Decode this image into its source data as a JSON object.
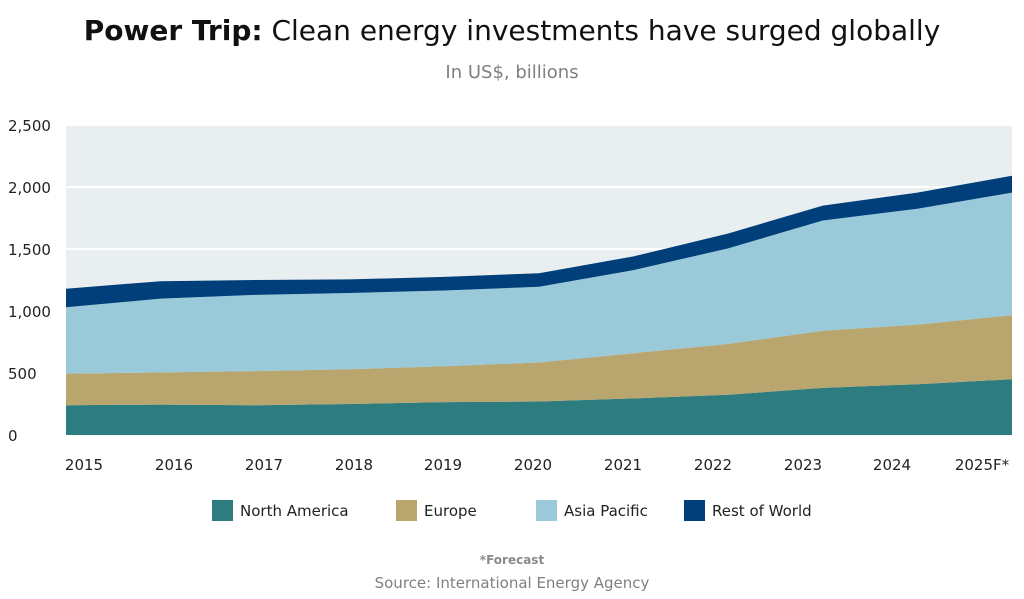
{
  "title": {
    "bold": "Power Trip:",
    "rest": "Clean energy investments have surged globally"
  },
  "subtitle": "In US$, billions",
  "footnote": "*Forecast",
  "source": "Source: International Energy Agency",
  "colors": {
    "plot_background": "#e9eef1",
    "grid": "#ffffff",
    "North America": "#2d7d80",
    "Europe": "#b8a66e",
    "Asia Pacific": "#9acada",
    "Rest of World": "#003f7a"
  },
  "chart_data": {
    "type": "area",
    "stacked": true,
    "title": "Clean energy investments have surged globally",
    "ylabel": "In US$, billions",
    "ylim": [
      0,
      2500
    ],
    "yticks": [
      0,
      500,
      1000,
      1500,
      2000,
      2500
    ],
    "ytick_labels": [
      "0",
      "500",
      "1,000",
      "1,500",
      "2,000",
      "2,500"
    ],
    "grid": true,
    "legend_position": "bottom",
    "categories": [
      "2015",
      "2016",
      "2017",
      "2018",
      "2019",
      "2020",
      "2021",
      "2022",
      "2023",
      "2024",
      "2025F*"
    ],
    "series": [
      {
        "name": "North America",
        "values": [
          240,
          245,
          240,
          250,
          265,
          270,
          295,
          325,
          380,
          410,
          450
        ]
      },
      {
        "name": "Europe",
        "values": [
          255,
          260,
          275,
          280,
          290,
          315,
          365,
          410,
          460,
          480,
          515
        ]
      },
      {
        "name": "Asia Pacific",
        "values": [
          535,
          595,
          615,
          615,
          610,
          610,
          670,
          770,
          890,
          935,
          990
        ]
      },
      {
        "name": "Rest of World",
        "values": [
          150,
          140,
          120,
          110,
          110,
          110,
          110,
          120,
          120,
          130,
          135
        ]
      }
    ]
  }
}
